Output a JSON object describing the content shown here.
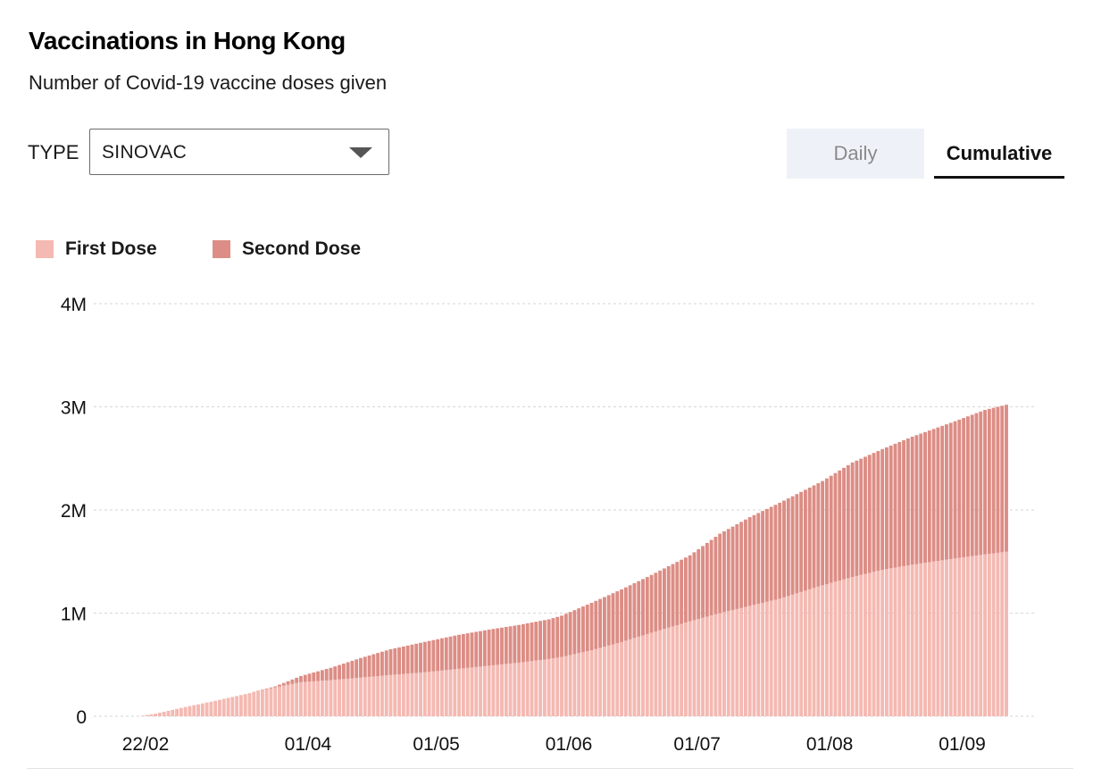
{
  "header": {
    "title": "Vaccinations in Hong Kong",
    "subtitle": "Number of Covid-19 vaccine doses given"
  },
  "controls": {
    "type_label": "TYPE",
    "type_selected": "SINOVAC",
    "tabs": [
      {
        "label": "Daily",
        "active": false
      },
      {
        "label": "Cumulative",
        "active": true
      }
    ]
  },
  "colors": {
    "first_dose": "#f4b9b2",
    "second_dose": "#dc8d85",
    "grid": "#d6d6d6",
    "axis_text": "#111111"
  },
  "chart_data": {
    "type": "area",
    "stacked": true,
    "title": "Vaccinations in Hong Kong",
    "subtitle": "Number of Covid-19 vaccine doses given",
    "legend": [
      "First Dose",
      "Second Dose"
    ],
    "legend_position": "top-left",
    "grid": true,
    "x_start": "2021-02-22",
    "x_end": "2021-09-13",
    "x_ticks": [
      {
        "date": "2021-02-22",
        "label": "22/02"
      },
      {
        "date": "2021-04-01",
        "label": "01/04"
      },
      {
        "date": "2021-05-01",
        "label": "01/05"
      },
      {
        "date": "2021-06-01",
        "label": "01/06"
      },
      {
        "date": "2021-07-01",
        "label": "01/07"
      },
      {
        "date": "2021-08-01",
        "label": "01/08"
      },
      {
        "date": "2021-09-01",
        "label": "01/09"
      }
    ],
    "ylim": [
      0,
      4000000
    ],
    "y_ticks": [
      {
        "value": 0,
        "label": "0"
      },
      {
        "value": 1000000,
        "label": "1M"
      },
      {
        "value": 2000000,
        "label": "2M"
      },
      {
        "value": 3000000,
        "label": "3M"
      },
      {
        "value": 4000000,
        "label": "4M"
      }
    ],
    "series": [
      {
        "name": "First Dose",
        "points": [
          [
            "2021-02-22",
            0
          ],
          [
            "2021-02-26",
            25000
          ],
          [
            "2021-03-05",
            90000
          ],
          [
            "2021-03-12",
            150000
          ],
          [
            "2021-03-19",
            215000
          ],
          [
            "2021-03-26",
            280000
          ],
          [
            "2021-04-01",
            330000
          ],
          [
            "2021-04-08",
            350000
          ],
          [
            "2021-04-15",
            375000
          ],
          [
            "2021-04-22",
            400000
          ],
          [
            "2021-05-01",
            430000
          ],
          [
            "2021-05-08",
            460000
          ],
          [
            "2021-05-15",
            490000
          ],
          [
            "2021-05-22",
            520000
          ],
          [
            "2021-05-29",
            555000
          ],
          [
            "2021-06-01",
            575000
          ],
          [
            "2021-06-08",
            640000
          ],
          [
            "2021-06-15",
            720000
          ],
          [
            "2021-06-22",
            810000
          ],
          [
            "2021-07-01",
            920000
          ],
          [
            "2021-07-08",
            1000000
          ],
          [
            "2021-07-15",
            1070000
          ],
          [
            "2021-07-22",
            1140000
          ],
          [
            "2021-08-01",
            1270000
          ],
          [
            "2021-08-08",
            1350000
          ],
          [
            "2021-08-15",
            1420000
          ],
          [
            "2021-08-22",
            1470000
          ],
          [
            "2021-09-01",
            1530000
          ],
          [
            "2021-09-08",
            1570000
          ],
          [
            "2021-09-13",
            1595000
          ]
        ]
      },
      {
        "name": "Second Dose",
        "points": [
          [
            "2021-02-22",
            0
          ],
          [
            "2021-03-12",
            0
          ],
          [
            "2021-03-19",
            0
          ],
          [
            "2021-03-26",
            10000
          ],
          [
            "2021-04-01",
            60000
          ],
          [
            "2021-04-08",
            120000
          ],
          [
            "2021-04-15",
            190000
          ],
          [
            "2021-04-22",
            250000
          ],
          [
            "2021-05-01",
            300000
          ],
          [
            "2021-05-08",
            330000
          ],
          [
            "2021-05-15",
            350000
          ],
          [
            "2021-05-22",
            365000
          ],
          [
            "2021-05-29",
            385000
          ],
          [
            "2021-06-01",
            400000
          ],
          [
            "2021-06-08",
            460000
          ],
          [
            "2021-06-15",
            510000
          ],
          [
            "2021-06-22",
            560000
          ],
          [
            "2021-07-01",
            640000
          ],
          [
            "2021-07-08",
            770000
          ],
          [
            "2021-07-15",
            860000
          ],
          [
            "2021-07-22",
            930000
          ],
          [
            "2021-08-01",
            1010000
          ],
          [
            "2021-08-08",
            1110000
          ],
          [
            "2021-08-15",
            1170000
          ],
          [
            "2021-08-22",
            1240000
          ],
          [
            "2021-09-01",
            1330000
          ],
          [
            "2021-09-08",
            1400000
          ],
          [
            "2021-09-13",
            1425000
          ]
        ]
      }
    ]
  }
}
